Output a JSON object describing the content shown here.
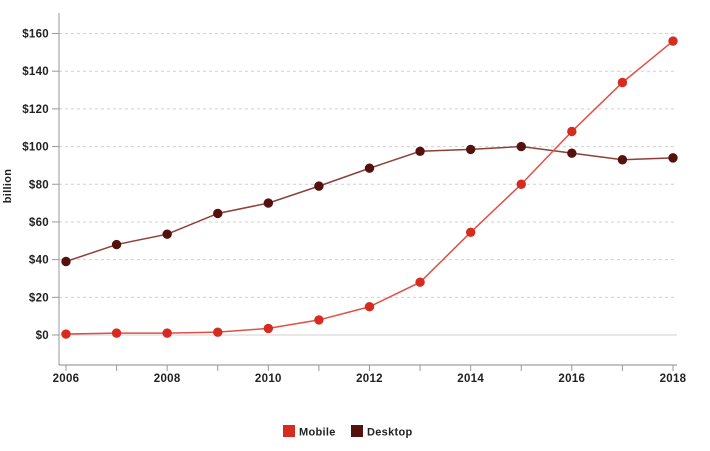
{
  "chart_data": {
    "type": "line",
    "title": "",
    "xlabel": "",
    "ylabel": "billion",
    "x": [
      2006,
      2007,
      2008,
      2009,
      2010,
      2011,
      2012,
      2013,
      2014,
      2015,
      2016,
      2017,
      2018
    ],
    "x_tick_labels": [
      "2006",
      "2008",
      "2010",
      "2012",
      "2014",
      "2016",
      "2018"
    ],
    "y_ticks": [
      0,
      20,
      40,
      60,
      80,
      100,
      120,
      140,
      160
    ],
    "y_tick_labels": [
      "$0",
      "$20",
      "$40",
      "$60",
      "$80",
      "$100",
      "$120",
      "$140",
      "$160"
    ],
    "ylim": [
      0,
      160
    ],
    "grid": "horizontal-dashed",
    "legend_position": "bottom-center",
    "series": [
      {
        "name": "Mobile",
        "point_color": "#d62b1e",
        "line_color": "#e04f46",
        "values": [
          0.5,
          1,
          1,
          1.5,
          3.5,
          8,
          15,
          28,
          54.5,
          80,
          108,
          134,
          156
        ]
      },
      {
        "name": "Desktop",
        "point_color": "#55110d",
        "line_color": "#8d4037",
        "values": [
          39,
          48,
          53.5,
          64.5,
          70,
          79,
          88.5,
          97.5,
          98.5,
          100,
          96.5,
          93,
          94
        ]
      }
    ],
    "colors": {
      "grid": "#d0d0d0",
      "y_axis_line": "#999999",
      "x_axis_line": "#888888",
      "tick": "#999999",
      "text": "#222222",
      "background": "#ffffff"
    }
  }
}
